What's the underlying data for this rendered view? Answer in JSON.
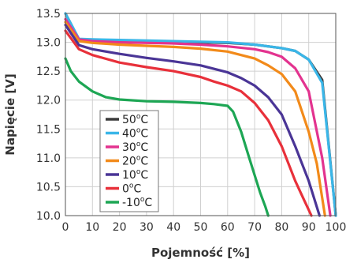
{
  "chart_data": {
    "type": "line",
    "title": "",
    "xlabel": "Pojemność [%]",
    "ylabel": "Napięcie [V]",
    "xlim": [
      0,
      100
    ],
    "ylim": [
      10.0,
      13.5
    ],
    "xticks": [
      "0",
      "10",
      "20",
      "30",
      "40",
      "50",
      "60",
      "70",
      "80",
      "90",
      "100"
    ],
    "yticks": [
      "10.0",
      "10.5",
      "11.0",
      "11.5",
      "12.0",
      "12.5",
      "13.0",
      "13.5"
    ],
    "grid": true,
    "legend_position": "bottom-left",
    "series": [
      {
        "name": "50°C",
        "name_base": "50",
        "name_sup": "o",
        "name_unit": "C",
        "color": "#3c3c3c",
        "x": [
          0,
          5,
          10,
          20,
          30,
          40,
          50,
          60,
          70,
          80,
          85,
          90,
          95,
          100
        ],
        "y": [
          13.5,
          13.05,
          13.04,
          13.03,
          13.02,
          13.01,
          13.0,
          12.99,
          12.96,
          12.9,
          12.85,
          12.7,
          12.35,
          10.0
        ]
      },
      {
        "name": "40°C",
        "name_base": "40",
        "name_sup": "o",
        "name_unit": "C",
        "color": "#3ab6e8",
        "x": [
          0,
          5,
          10,
          20,
          30,
          40,
          50,
          60,
          70,
          80,
          85,
          90,
          95,
          100
        ],
        "y": [
          13.5,
          13.06,
          13.05,
          13.04,
          13.03,
          13.02,
          13.01,
          13.0,
          12.96,
          12.9,
          12.85,
          12.7,
          12.3,
          10.0
        ]
      },
      {
        "name": "30°C",
        "name_base": "30",
        "name_sup": "o",
        "name_unit": "C",
        "color": "#e3338f",
        "x": [
          0,
          5,
          10,
          20,
          30,
          40,
          50,
          60,
          70,
          75,
          80,
          85,
          90,
          95,
          98
        ],
        "y": [
          13.4,
          13.05,
          13.02,
          13.0,
          12.99,
          12.98,
          12.96,
          12.93,
          12.88,
          12.83,
          12.75,
          12.55,
          12.15,
          11.0,
          10.0
        ]
      },
      {
        "name": "20°C",
        "name_base": "20",
        "name_sup": "o",
        "name_unit": "C",
        "color": "#f28a1a",
        "x": [
          0,
          5,
          10,
          20,
          30,
          40,
          50,
          60,
          70,
          75,
          80,
          85,
          90,
          93,
          96
        ],
        "y": [
          13.35,
          13.02,
          12.99,
          12.96,
          12.94,
          12.92,
          12.89,
          12.84,
          12.72,
          12.6,
          12.45,
          12.15,
          11.45,
          10.9,
          10.0
        ]
      },
      {
        "name": "10°C",
        "name_base": "10",
        "name_sup": "o",
        "name_unit": "C",
        "color": "#4a3596",
        "x": [
          0,
          5,
          10,
          20,
          30,
          40,
          50,
          60,
          65,
          70,
          75,
          80,
          85,
          90,
          94
        ],
        "y": [
          13.3,
          12.95,
          12.88,
          12.8,
          12.73,
          12.67,
          12.6,
          12.48,
          12.38,
          12.25,
          12.05,
          11.75,
          11.2,
          10.6,
          10.0
        ]
      },
      {
        "name": "0°C",
        "name_base": "0",
        "name_sup": "o",
        "name_unit": "C",
        "color": "#e8303a",
        "x": [
          0,
          5,
          10,
          20,
          30,
          40,
          50,
          55,
          60,
          65,
          70,
          75,
          80,
          85,
          88,
          91
        ],
        "y": [
          13.2,
          12.88,
          12.78,
          12.65,
          12.57,
          12.5,
          12.4,
          12.32,
          12.25,
          12.15,
          11.95,
          11.65,
          11.2,
          10.6,
          10.3,
          10.0
        ]
      },
      {
        "name": "-10°C",
        "name_base": "-10",
        "name_sup": "o",
        "name_unit": "C",
        "color": "#1da654",
        "x": [
          0,
          2,
          5,
          10,
          15,
          20,
          30,
          40,
          50,
          55,
          60,
          62,
          65,
          68,
          70,
          72,
          74,
          75
        ],
        "y": [
          12.72,
          12.5,
          12.32,
          12.15,
          12.05,
          12.01,
          11.98,
          11.97,
          11.95,
          11.93,
          11.9,
          11.8,
          11.45,
          11.0,
          10.7,
          10.4,
          10.15,
          10.0
        ]
      }
    ]
  }
}
